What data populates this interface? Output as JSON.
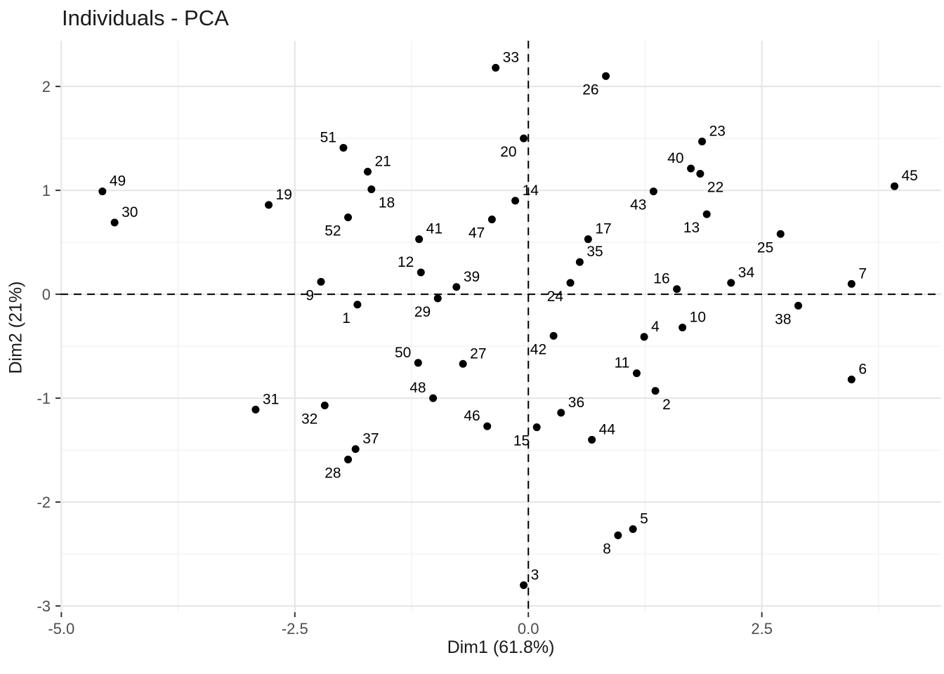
{
  "title": "Individuals - PCA",
  "colors": {
    "background": "#ffffff",
    "point": "#000000",
    "point_label": "#000000",
    "grid_major": "#e5e5e5",
    "grid_minor": "#f0f0f0",
    "axis_text": "#4d4d4d",
    "axis_title": "#1a1a1a",
    "title": "#1a1a1a",
    "tick_mark": "#333333",
    "reference_line": "#000000"
  },
  "chart_data": {
    "type": "scatter",
    "title": "Individuals - PCA",
    "xlabel": "Dim1 (61.8%)",
    "ylabel": "Dim2 (21%)",
    "xlim": [
      -5.01,
      4.42
    ],
    "ylim": [
      -3.06,
      2.44
    ],
    "grid": true,
    "legend": "none",
    "x_ticks": [
      {
        "value": -5.0,
        "label": "-5.0"
      },
      {
        "value": -2.5,
        "label": "-2.5"
      },
      {
        "value": 0.0,
        "label": "0.0"
      },
      {
        "value": 2.5,
        "label": "2.5"
      }
    ],
    "y_ticks": [
      {
        "value": 2,
        "label": "2"
      },
      {
        "value": 1,
        "label": "1"
      },
      {
        "value": 0,
        "label": "0"
      },
      {
        "value": -1,
        "label": "-1"
      },
      {
        "value": -2,
        "label": "-2"
      },
      {
        "value": -3,
        "label": "-3"
      }
    ],
    "x_minor_gridlines": [
      -3.75,
      -1.25,
      1.25,
      3.75
    ],
    "y_minor_gridlines": [
      -2.5,
      -1.5,
      -0.5,
      0.5,
      1.5
    ],
    "reference_lines": {
      "vline_x": 0,
      "hline_y": 0,
      "style": "dashed"
    },
    "points": [
      {
        "id": "1",
        "x": -1.83,
        "y": -0.1,
        "label_pos": "bl"
      },
      {
        "id": "2",
        "x": 1.36,
        "y": -0.93,
        "label_pos": "br"
      },
      {
        "id": "3",
        "x": -0.05,
        "y": -2.8,
        "label_pos": "tr"
      },
      {
        "id": "4",
        "x": 1.24,
        "y": -0.41,
        "label_pos": "tr"
      },
      {
        "id": "5",
        "x": 1.12,
        "y": -2.26,
        "label_pos": "tr"
      },
      {
        "id": "6",
        "x": 3.46,
        "y": -0.82,
        "label_pos": "tr"
      },
      {
        "id": "7",
        "x": 3.46,
        "y": 0.1,
        "label_pos": "tr"
      },
      {
        "id": "8",
        "x": 0.96,
        "y": -2.32,
        "label_pos": "bl"
      },
      {
        "id": "9",
        "x": -2.22,
        "y": 0.12,
        "label_pos": "bl"
      },
      {
        "id": "10",
        "x": 1.65,
        "y": -0.32,
        "label_pos": "tr"
      },
      {
        "id": "11",
        "x": 1.16,
        "y": -0.76,
        "label_pos": "tl"
      },
      {
        "id": "12",
        "x": -1.15,
        "y": 0.21,
        "label_pos": "tl"
      },
      {
        "id": "13",
        "x": 1.91,
        "y": 0.77,
        "label_pos": "bl"
      },
      {
        "id": "14",
        "x": -0.14,
        "y": 0.9,
        "label_pos": "tr"
      },
      {
        "id": "15",
        "x": 0.09,
        "y": -1.28,
        "label_pos": "bl"
      },
      {
        "id": "16",
        "x": 1.59,
        "y": 0.05,
        "label_pos": "tl"
      },
      {
        "id": "17",
        "x": 0.64,
        "y": 0.53,
        "label_pos": "tr"
      },
      {
        "id": "18",
        "x": -1.68,
        "y": 1.01,
        "label_pos": "br"
      },
      {
        "id": "19",
        "x": -2.78,
        "y": 0.86,
        "label_pos": "tr"
      },
      {
        "id": "20",
        "x": -0.05,
        "y": 1.5,
        "label_pos": "bl"
      },
      {
        "id": "21",
        "x": -1.72,
        "y": 1.18,
        "label_pos": "tr"
      },
      {
        "id": "22",
        "x": 1.84,
        "y": 1.16,
        "label_pos": "br"
      },
      {
        "id": "23",
        "x": 1.86,
        "y": 1.47,
        "label_pos": "tr"
      },
      {
        "id": "24",
        "x": 0.45,
        "y": 0.11,
        "label_pos": "bl"
      },
      {
        "id": "25",
        "x": 2.7,
        "y": 0.58,
        "label_pos": "bl"
      },
      {
        "id": "26",
        "x": 0.83,
        "y": 2.1,
        "label_pos": "bl"
      },
      {
        "id": "27",
        "x": -0.7,
        "y": -0.67,
        "label_pos": "tr"
      },
      {
        "id": "28",
        "x": -1.93,
        "y": -1.59,
        "label_pos": "bl"
      },
      {
        "id": "29",
        "x": -0.97,
        "y": -0.04,
        "label_pos": "bl"
      },
      {
        "id": "30",
        "x": -4.43,
        "y": 0.69,
        "label_pos": "tr"
      },
      {
        "id": "31",
        "x": -2.92,
        "y": -1.11,
        "label_pos": "tr"
      },
      {
        "id": "32",
        "x": -2.18,
        "y": -1.07,
        "label_pos": "bl"
      },
      {
        "id": "33",
        "x": -0.35,
        "y": 2.18,
        "label_pos": "tr"
      },
      {
        "id": "34",
        "x": 2.17,
        "y": 0.11,
        "label_pos": "tr"
      },
      {
        "id": "35",
        "x": 0.55,
        "y": 0.31,
        "label_pos": "tr"
      },
      {
        "id": "36",
        "x": 0.35,
        "y": -1.14,
        "label_pos": "tr"
      },
      {
        "id": "37",
        "x": -1.85,
        "y": -1.49,
        "label_pos": "tr"
      },
      {
        "id": "38",
        "x": 2.89,
        "y": -0.11,
        "label_pos": "bl"
      },
      {
        "id": "39",
        "x": -0.77,
        "y": 0.07,
        "label_pos": "tr"
      },
      {
        "id": "40",
        "x": 1.74,
        "y": 1.21,
        "label_pos": "tl"
      },
      {
        "id": "41",
        "x": -1.17,
        "y": 0.53,
        "label_pos": "tr"
      },
      {
        "id": "42",
        "x": 0.27,
        "y": -0.4,
        "label_pos": "bl"
      },
      {
        "id": "43",
        "x": 1.34,
        "y": 0.99,
        "label_pos": "bl"
      },
      {
        "id": "44",
        "x": 0.68,
        "y": -1.4,
        "label_pos": "tr"
      },
      {
        "id": "45",
        "x": 3.92,
        "y": 1.04,
        "label_pos": "tr"
      },
      {
        "id": "46",
        "x": -0.44,
        "y": -1.27,
        "label_pos": "tl"
      },
      {
        "id": "47",
        "x": -0.39,
        "y": 0.72,
        "label_pos": "bl"
      },
      {
        "id": "48",
        "x": -1.02,
        "y": -1.0,
        "label_pos": "tl"
      },
      {
        "id": "49",
        "x": -4.56,
        "y": 0.99,
        "label_pos": "tr"
      },
      {
        "id": "50",
        "x": -1.18,
        "y": -0.66,
        "label_pos": "tl"
      },
      {
        "id": "51",
        "x": -1.98,
        "y": 1.41,
        "label_pos": "tl"
      },
      {
        "id": "52",
        "x": -1.93,
        "y": 0.74,
        "label_pos": "bl"
      }
    ]
  }
}
